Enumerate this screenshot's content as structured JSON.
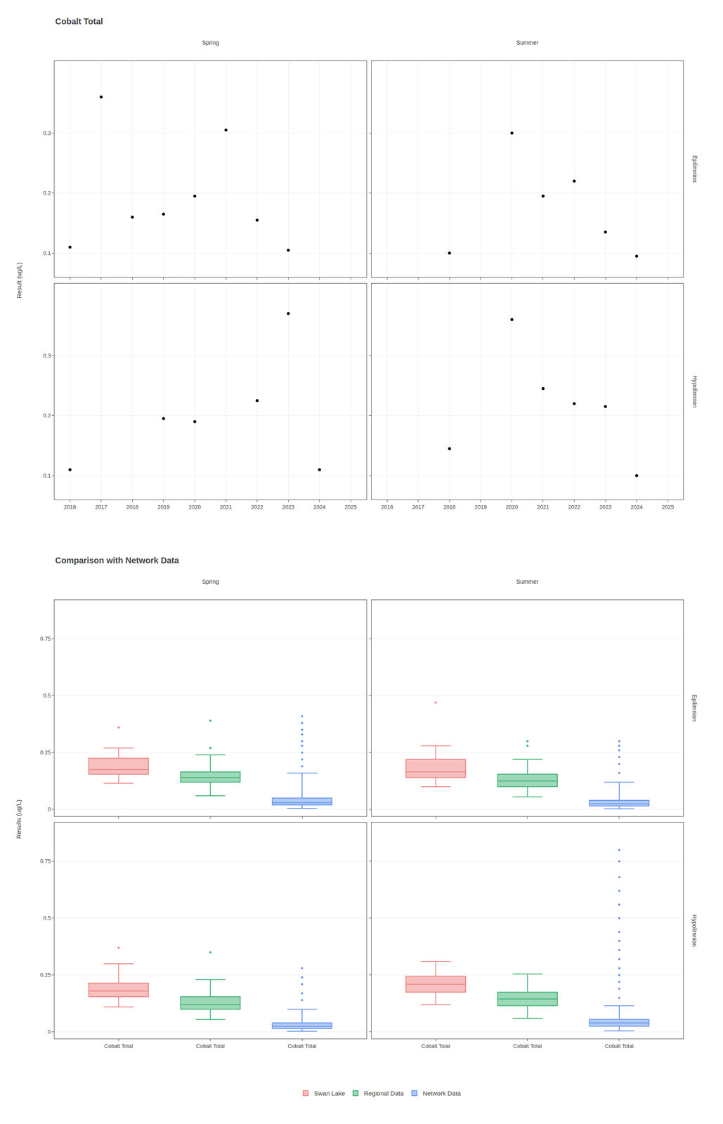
{
  "chart_data": [
    {
      "type": "scatter",
      "title": "Cobalt Total",
      "y_label": "Result (ug/L)",
      "x": [
        2016,
        2017,
        2018,
        2019,
        2020,
        2021,
        2022,
        2023,
        2024,
        2025
      ],
      "xlim": [
        2015.5,
        2025.5
      ],
      "xticks": [
        2016,
        2017,
        2018,
        2019,
        2020,
        2021,
        2022,
        2023,
        2024,
        2025
      ],
      "ylim": [
        0.06,
        0.42
      ],
      "yticks": [
        0.1,
        0.2,
        0.3
      ],
      "grid": true,
      "color": "#000000",
      "facets": {
        "columns": [
          "Spring",
          "Summer"
        ],
        "rows": [
          "Epilimnion",
          "Hypolimnion"
        ]
      },
      "panels": [
        {
          "column": "Spring",
          "row": "Epilimnion",
          "values": [
            0.11,
            0.36,
            0.16,
            0.165,
            0.195,
            0.305,
            0.155,
            0.105,
            null,
            null
          ]
        },
        {
          "column": "Summer",
          "row": "Epilimnion",
          "values": [
            null,
            null,
            0.1,
            null,
            0.3,
            0.195,
            0.22,
            0.135,
            0.095,
            null
          ]
        },
        {
          "column": "Spring",
          "row": "Hypolimnion",
          "values": [
            0.11,
            null,
            null,
            0.195,
            0.19,
            null,
            0.225,
            0.37,
            0.11,
            null
          ]
        },
        {
          "column": "Summer",
          "row": "Hypolimnion",
          "values": [
            null,
            null,
            0.145,
            null,
            0.36,
            0.245,
            0.22,
            0.215,
            0.1,
            null
          ]
        }
      ]
    },
    {
      "type": "box",
      "title": "Comparison with Network Data",
      "y_label": "Results (ug/L)",
      "categories": [
        "Cobalt Total",
        "Cobalt Total",
        "Cobalt Total"
      ],
      "ylim": [
        -0.03,
        0.92
      ],
      "yticks": [
        0,
        0.25,
        0.5,
        0.75
      ],
      "grid": "y",
      "series": [
        {
          "name": "Swan Lake",
          "color": "#F08080"
        },
        {
          "name": "Regional Data",
          "color": "#3CB371"
        },
        {
          "name": "Network Data",
          "color": "#6495ED"
        }
      ],
      "facets": {
        "columns": [
          "Spring",
          "Summer"
        ],
        "rows": [
          "Epilimnion",
          "Hypolimnion"
        ]
      },
      "panels": [
        {
          "column": "Spring",
          "row": "Epilimnion",
          "boxes": [
            {
              "median": 0.175,
              "q1": 0.155,
              "q3": 0.225,
              "lower_whisker": 0.115,
              "upper_whisker": 0.27,
              "outliers": [
                0.36
              ]
            },
            {
              "median": 0.14,
              "q1": 0.12,
              "q3": 0.165,
              "lower_whisker": 0.06,
              "upper_whisker": 0.24,
              "outliers": [
                0.27,
                0.39
              ]
            },
            {
              "median": 0.03,
              "q1": 0.02,
              "q3": 0.05,
              "lower_whisker": 0.005,
              "upper_whisker": 0.16,
              "outliers": [
                0.19,
                0.22,
                0.25,
                0.28,
                0.3,
                0.33,
                0.35,
                0.38,
                0.41
              ]
            }
          ]
        },
        {
          "column": "Summer",
          "row": "Epilimnion",
          "boxes": [
            {
              "median": 0.165,
              "q1": 0.14,
              "q3": 0.22,
              "lower_whisker": 0.1,
              "upper_whisker": 0.28,
              "outliers": [
                0.47
              ]
            },
            {
              "median": 0.125,
              "q1": 0.1,
              "q3": 0.155,
              "lower_whisker": 0.055,
              "upper_whisker": 0.22,
              "outliers": [
                0.28,
                0.3
              ]
            },
            {
              "median": 0.025,
              "q1": 0.015,
              "q3": 0.04,
              "lower_whisker": 0.003,
              "upper_whisker": 0.12,
              "outliers": [
                0.16,
                0.2,
                0.23,
                0.26,
                0.28,
                0.3
              ]
            }
          ]
        },
        {
          "column": "Spring",
          "row": "Hypolimnion",
          "boxes": [
            {
              "median": 0.18,
              "q1": 0.155,
              "q3": 0.215,
              "lower_whisker": 0.11,
              "upper_whisker": 0.3,
              "outliers": [
                0.37
              ]
            },
            {
              "median": 0.12,
              "q1": 0.1,
              "q3": 0.155,
              "lower_whisker": 0.055,
              "upper_whisker": 0.23,
              "outliers": [
                0.35
              ]
            },
            {
              "median": 0.025,
              "q1": 0.015,
              "q3": 0.04,
              "lower_whisker": 0.003,
              "upper_whisker": 0.1,
              "outliers": [
                0.14,
                0.17,
                0.21,
                0.24,
                0.28
              ]
            }
          ]
        },
        {
          "column": "Summer",
          "row": "Hypolimnion",
          "boxes": [
            {
              "median": 0.21,
              "q1": 0.175,
              "q3": 0.245,
              "lower_whisker": 0.12,
              "upper_whisker": 0.31,
              "outliers": []
            },
            {
              "median": 0.145,
              "q1": 0.115,
              "q3": 0.175,
              "lower_whisker": 0.06,
              "upper_whisker": 0.255,
              "outliers": []
            },
            {
              "median": 0.04,
              "q1": 0.025,
              "q3": 0.055,
              "lower_whisker": 0.005,
              "upper_whisker": 0.115,
              "outliers": [
                0.15,
                0.19,
                0.22,
                0.25,
                0.28,
                0.32,
                0.36,
                0.4,
                0.44,
                0.5,
                0.56,
                0.62,
                0.68,
                0.75,
                0.8
              ]
            }
          ]
        }
      ]
    }
  ]
}
